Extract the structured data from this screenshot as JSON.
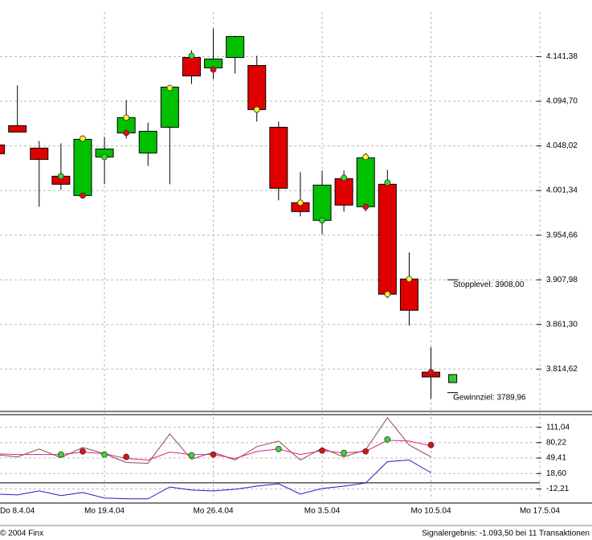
{
  "chart_data": [
    {
      "type": "candlestick",
      "x": [
        0,
        1,
        2,
        3,
        4,
        5,
        6,
        7,
        8,
        9,
        10,
        11,
        12,
        13,
        14,
        15,
        16,
        17,
        18,
        19,
        20
      ],
      "open": [
        4049.0,
        4069.2,
        4045.7,
        4016.3,
        3996.1,
        4036.4,
        4061.6,
        4040.6,
        4067.5,
        4140.5,
        4129.6,
        4140.5,
        4132.1,
        4067.5,
        3988.6,
        3970.1,
        4013.8,
        3984.4,
        4007.9,
        3908.8,
        3811.4
      ],
      "high": [
        4052.0,
        4111.2,
        4053.2,
        4050.7,
        4054.9,
        4057.4,
        4096.0,
        4072.5,
        4110.0,
        4148.1,
        4170.8,
        4163.2,
        4142.2,
        4073.4,
        4020.5,
        4022.2,
        4022.2,
        4040.6,
        4023.0,
        3936.5,
        3837.4
      ],
      "low": [
        4037.0,
        4062.5,
        3984.4,
        4002.0,
        3994.4,
        4007.9,
        4055.7,
        4027.2,
        4007.9,
        4112.8,
        4117.9,
        4123.7,
        4073.4,
        3991.1,
        3974.3,
        3955.8,
        3979.3,
        3979.3,
        3888.7,
        3860.1,
        3783.7
      ],
      "close": [
        4039.8,
        4062.5,
        4033.9,
        4007.9,
        4054.9,
        4044.8,
        4077.6,
        4063.3,
        4109.5,
        4121.2,
        4138.9,
        4162.4,
        4086.0,
        4003.7,
        3979.3,
        4007.0,
        3986.1,
        4035.6,
        3892.9,
        3876.1,
        3806.4
      ],
      "up_color": "#00c000",
      "down_color": "#e00000",
      "xlim": [
        0.2,
        25
      ],
      "ylim": [
        3772,
        4188
      ],
      "xticks": [
        {
          "value": 0,
          "label": "Do 8.4.04"
        },
        {
          "value": 5,
          "label": "Mo 19.4.04"
        },
        {
          "value": 10,
          "label": "Mo 26.4.04"
        },
        {
          "value": 15,
          "label": "Mo 3.5.04"
        },
        {
          "value": 20,
          "label": "Mo 10.5.04"
        },
        {
          "value": 25,
          "label": "Mo 17.5.04"
        }
      ],
      "yticks": [
        {
          "value": 4141.38,
          "label": "4.141,38"
        },
        {
          "value": 4094.7,
          "label": "4.094,70"
        },
        {
          "value": 4048.02,
          "label": "4.048,02"
        },
        {
          "value": 4001.34,
          "label": "4.001,34"
        },
        {
          "value": 3954.66,
          "label": "3.954,66"
        },
        {
          "value": 3907.98,
          "label": "3.907,98"
        },
        {
          "value": 3861.3,
          "label": "3.861,30"
        },
        {
          "value": 3814.62,
          "label": "3.814,62"
        }
      ],
      "grid": true,
      "markers": [
        {
          "x": 3,
          "value": 4016.3,
          "color": "#33dd33"
        },
        {
          "x": 4,
          "value": 3996.1,
          "color": "#dd1111"
        },
        {
          "x": 4,
          "value": 4055.7,
          "color": "#ffee33"
        },
        {
          "x": 5,
          "value": 4036.4,
          "color": "#33dd33"
        },
        {
          "x": 6,
          "value": 4061.6,
          "color": "#dd1111"
        },
        {
          "x": 6,
          "value": 4077.6,
          "color": "#ffee33"
        },
        {
          "x": 8,
          "value": 4108.6,
          "color": "#ffee33"
        },
        {
          "x": 9,
          "value": 4142.2,
          "color": "#33dd33"
        },
        {
          "x": 10,
          "value": 4127.9,
          "color": "#dd1111"
        },
        {
          "x": 12,
          "value": 4086.0,
          "color": "#ffee33"
        },
        {
          "x": 14,
          "value": 3988.6,
          "color": "#ffee33"
        },
        {
          "x": 15,
          "value": 3970.1,
          "color": "#33dd33"
        },
        {
          "x": 16,
          "value": 4014.6,
          "color": "#33dd33"
        },
        {
          "x": 17,
          "value": 4036.4,
          "color": "#ffee33"
        },
        {
          "x": 17,
          "value": 3984.4,
          "color": "#dd1111"
        },
        {
          "x": 18,
          "value": 4009.6,
          "color": "#33dd33"
        },
        {
          "x": 18,
          "value": 3892.9,
          "color": "#ffee33"
        },
        {
          "x": 19,
          "value": 3908.8,
          "color": "#ffee33"
        },
        {
          "x": 20,
          "value": 3811.4,
          "color": "#dd1111"
        }
      ],
      "annotations": [
        {
          "text": "Stopplevel: 3908,00",
          "value": 3908.0
        },
        {
          "text": "Gewinnziel: 3789,96",
          "value": 3789.96
        }
      ],
      "signal": {
        "x": 21,
        "value": 3804.7,
        "color": "#33cc33"
      }
    },
    {
      "type": "line",
      "x": [
        0,
        1,
        2,
        3,
        4,
        5,
        6,
        7,
        8,
        9,
        10,
        11,
        12,
        13,
        14,
        15,
        16,
        17,
        18,
        19,
        20
      ],
      "series": [
        {
          "color": "#8b4a4a",
          "values": [
            56.5,
            51.8,
            67.6,
            50.2,
            70.7,
            58.1,
            40.7,
            39.1,
            97.6,
            47.0,
            61.3,
            45.5,
            72.3,
            83.4,
            45.5,
            69.2,
            51.8,
            66.0,
            130,
            75.5,
            51.8
          ]
        },
        {
          "color": "#e0208a",
          "values": [
            58.1,
            56.5,
            56.5,
            56.5,
            61.3,
            58.1,
            48.6,
            45.5,
            61.3,
            56.5,
            56.5,
            48.6,
            62.8,
            67.6,
            56.5,
            64.4,
            59.7,
            62.8,
            85.0,
            83.4,
            73.9
          ]
        },
        {
          "color": "#1a1acc",
          "values": [
            -22.5,
            -24.1,
            -16.2,
            -25.6,
            -19.3,
            -30.4,
            -32.0,
            -32.0,
            -8.3,
            -14.6,
            -16.2,
            -13.0,
            -6.7,
            -1.9,
            -22.5,
            -11.4,
            -6.7,
            -0.4,
            42.3,
            45.5,
            20.2
          ]
        }
      ],
      "xlim": [
        0.2,
        25
      ],
      "ylim": [
        -34,
        133
      ],
      "yticks": [
        {
          "value": 111.04,
          "label": "111,04"
        },
        {
          "value": 80.22,
          "label": "80,22"
        },
        {
          "value": 49.41,
          "label": "49,41"
        },
        {
          "value": 18.6,
          "label": "18,60"
        },
        {
          "value": -12.21,
          "label": "-12,21"
        }
      ],
      "zero_line": true,
      "markers": [
        {
          "x": 3,
          "value": 56.5,
          "color": "#33dd33"
        },
        {
          "x": 4,
          "value": 62.8,
          "color": "#dd1111"
        },
        {
          "x": 5,
          "value": 56.5,
          "color": "#33dd33"
        },
        {
          "x": 6,
          "value": 51.8,
          "color": "#dd1111"
        },
        {
          "x": 9,
          "value": 54.9,
          "color": "#33dd33"
        },
        {
          "x": 10,
          "value": 56.5,
          "color": "#dd1111"
        },
        {
          "x": 13,
          "value": 67.6,
          "color": "#33dd33"
        },
        {
          "x": 15,
          "value": 64.4,
          "color": "#dd1111"
        },
        {
          "x": 16,
          "value": 59.7,
          "color": "#33dd33"
        },
        {
          "x": 17,
          "value": 62.8,
          "color": "#dd1111"
        },
        {
          "x": 18,
          "value": 86.6,
          "color": "#33dd33"
        },
        {
          "x": 20,
          "value": 75.5,
          "color": "#dd1111"
        }
      ]
    }
  ],
  "footer": {
    "copyright": "© 2004 Finx",
    "result": "Signalergebnis: -1.093,50 bei 11 Transaktionen"
  }
}
